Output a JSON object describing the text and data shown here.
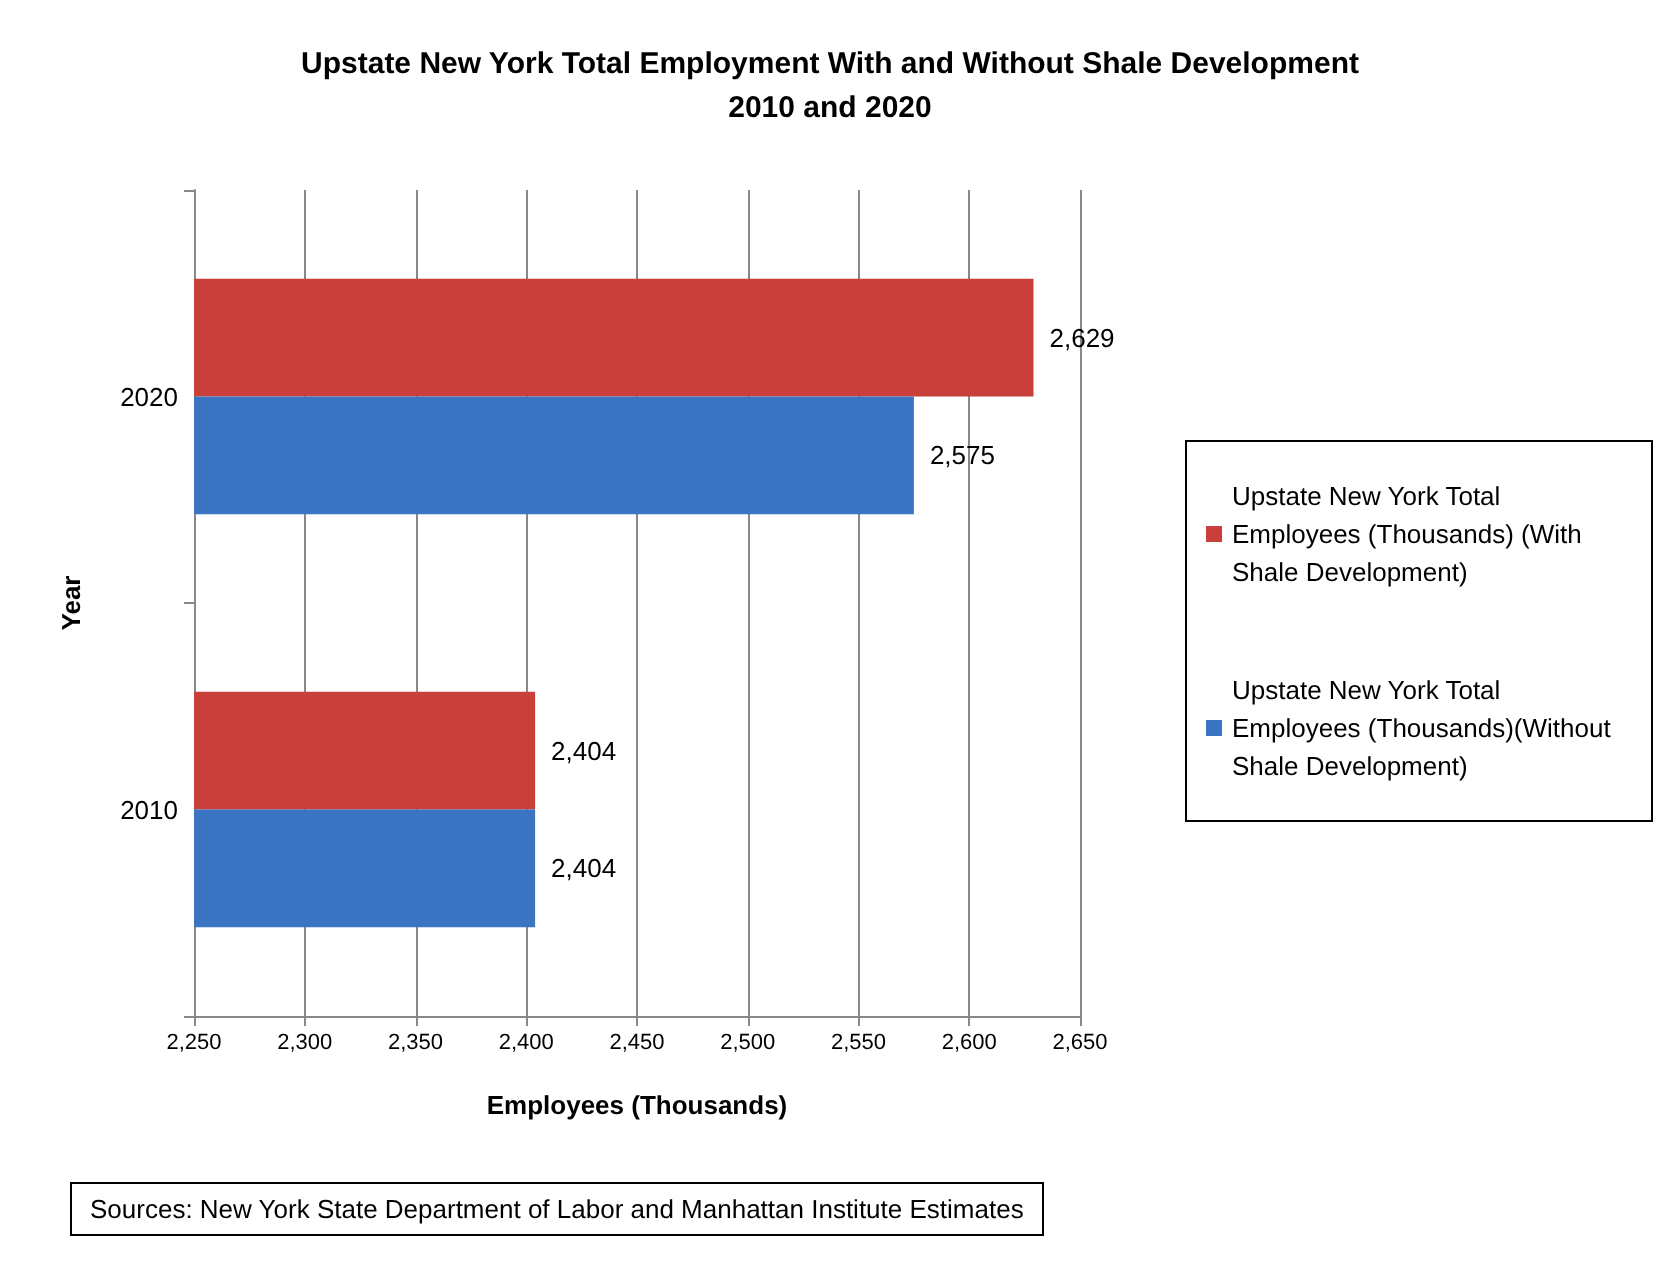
{
  "chart_data": {
    "type": "bar",
    "orientation": "horizontal",
    "title": "Upstate New York Total Employment With and Without Shale Development\n2010 and 2020",
    "xlabel": "Employees (Thousands)",
    "ylabel": "Year",
    "categories": [
      "2020",
      "2010"
    ],
    "series": [
      {
        "name": "Upstate New York Total Employees (Thousands) (With Shale Development)",
        "color": "#c9403b",
        "values": [
          2629,
          2404
        ],
        "value_labels": [
          "2,629",
          "2,404"
        ]
      },
      {
        "name": "Upstate New York Total Employees (Thousands)(Without Shale Development)",
        "color": "#3a74c2",
        "values": [
          2575,
          2404
        ],
        "value_labels": [
          "2,575",
          "2,404"
        ]
      }
    ],
    "xlim": [
      2250,
      2650
    ],
    "xticks": [
      {
        "value": 2250,
        "label": "2,250"
      },
      {
        "value": 2300,
        "label": "2,300"
      },
      {
        "value": 2350,
        "label": "2,350"
      },
      {
        "value": 2400,
        "label": "2,400"
      },
      {
        "value": 2450,
        "label": "2,450"
      },
      {
        "value": 2500,
        "label": "2,500"
      },
      {
        "value": 2550,
        "label": "2,550"
      },
      {
        "value": 2600,
        "label": "2,600"
      },
      {
        "value": 2650,
        "label": "2,650"
      }
    ],
    "grid": "x",
    "legend": "right",
    "annotations": [
      "Sources: New York State Department of Labor and Manhattan Institute Estimates"
    ]
  }
}
